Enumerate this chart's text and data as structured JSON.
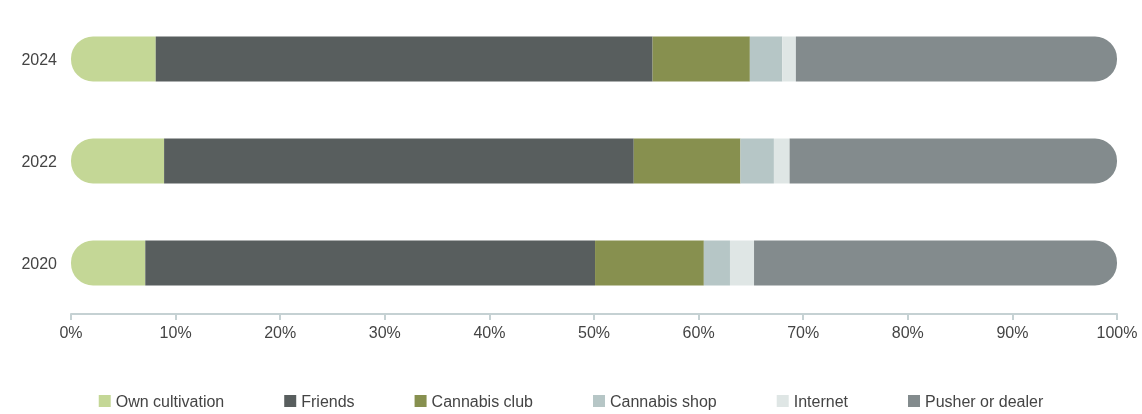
{
  "chart_data": {
    "type": "bar",
    "orientation": "horizontal",
    "stacked": true,
    "categories": [
      "2024",
      "2022",
      "2020"
    ],
    "series": [
      {
        "name": "Own cultivation",
        "color": "#c4d796",
        "values": [
          8.1,
          8.9,
          7.1
        ]
      },
      {
        "name": "Friends",
        "color": "#585e5e",
        "values": [
          47.5,
          44.9,
          43.0
        ]
      },
      {
        "name": "Cannabis club",
        "color": "#87904f",
        "values": [
          9.3,
          10.2,
          10.4
        ]
      },
      {
        "name": "Cannabis shop",
        "color": "#b6c6c6",
        "values": [
          3.1,
          3.2,
          2.5
        ]
      },
      {
        "name": "Internet",
        "color": "#dfe6e5",
        "values": [
          1.3,
          1.5,
          2.3
        ]
      },
      {
        "name": "Pusher or dealer",
        "color": "#838b8d",
        "values": [
          30.7,
          31.3,
          34.7
        ]
      }
    ],
    "xlim": [
      0,
      100
    ],
    "xticks": [
      {
        "value": 0,
        "label": "0%"
      },
      {
        "value": 10,
        "label": "10%"
      },
      {
        "value": 20,
        "label": "20%"
      },
      {
        "value": 30,
        "label": "30%"
      },
      {
        "value": 40,
        "label": "40%"
      },
      {
        "value": 50,
        "label": "50%"
      },
      {
        "value": 60,
        "label": "60%"
      },
      {
        "value": 70,
        "label": "70%"
      },
      {
        "value": 80,
        "label": "80%"
      },
      {
        "value": 90,
        "label": "90%"
      },
      {
        "value": 100,
        "label": "100%"
      }
    ],
    "grid": false,
    "legend": "bottom"
  }
}
